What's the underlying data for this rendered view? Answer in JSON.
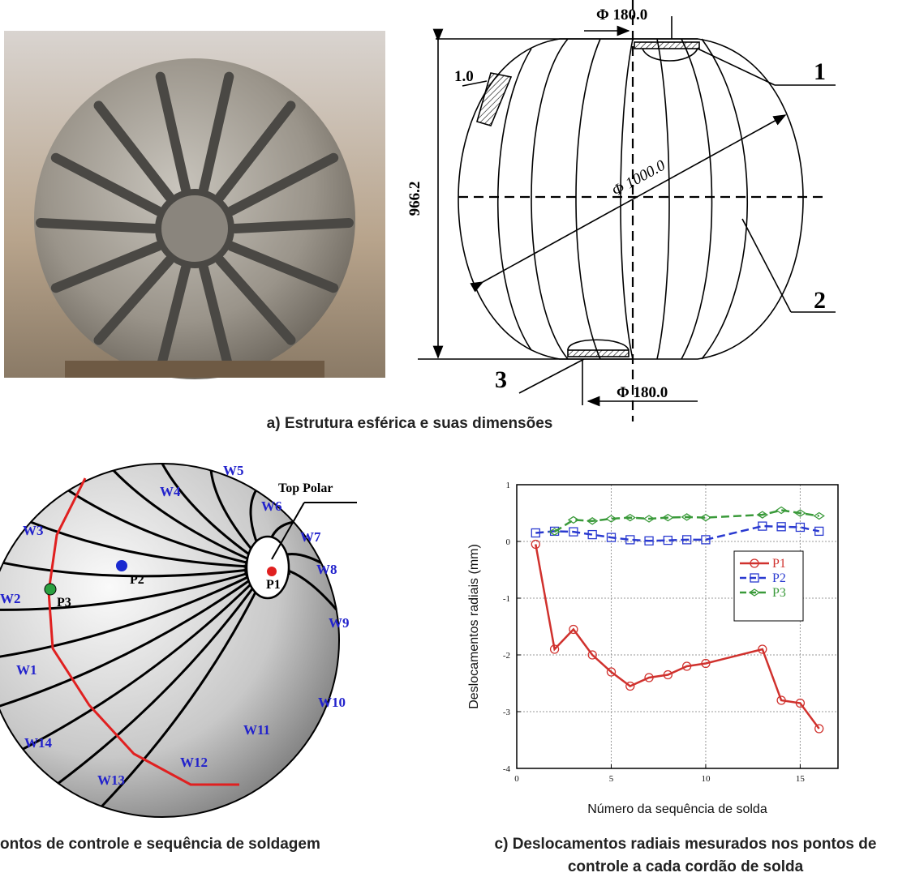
{
  "panel_a": {
    "dim_top": "Φ 180.0",
    "label_1": "1",
    "wall": "1.0",
    "height": "966.2",
    "diameter": "Φ 1000.0",
    "label_2": "2",
    "label_3": "3",
    "dim_bottom": "Φ 180.0",
    "caption": "a) Estrutura esférica e suas dimensões"
  },
  "panel_b": {
    "welds": [
      "W1",
      "W2",
      "W3",
      "W4",
      "W5",
      "W6",
      "W7",
      "W8",
      "W9",
      "W10",
      "W11",
      "W12",
      "W13",
      "W14"
    ],
    "top_polar": "Top Polar",
    "points": [
      "P1",
      "P2",
      "P3"
    ],
    "caption": "ontos de controle e sequência de soldagem"
  },
  "chart_data": {
    "type": "line",
    "x_label": "Número da sequência de solda",
    "y_label": "Deslocamentos radiais (mm)",
    "caption": [
      "c) Deslocamentos radiais mesurados nos pontos de",
      "controle a cada cordão de solda"
    ],
    "xlim": [
      0,
      17
    ],
    "ylim": [
      -4,
      1
    ],
    "xticks": [
      0,
      5,
      10,
      15
    ],
    "yticks": [
      -4,
      -3,
      -2,
      -1,
      0,
      1
    ],
    "grid": true,
    "series": [
      {
        "name": "P1",
        "color": "#d0312d",
        "marker": "circle",
        "dash": "solid",
        "x": [
          1,
          2,
          3,
          4,
          5,
          6,
          7,
          8,
          9,
          10,
          13,
          14,
          15,
          16
        ],
        "values": [
          -0.05,
          -1.9,
          -1.55,
          -2.0,
          -2.3,
          -2.55,
          -2.4,
          -2.35,
          -2.2,
          -2.15,
          -1.9,
          -2.8,
          -2.85,
          -3.3
        ]
      },
      {
        "name": "P2",
        "color": "#2a3ad0",
        "marker": "square",
        "dash": "dash",
        "x": [
          1,
          2,
          3,
          4,
          5,
          6,
          7,
          8,
          9,
          10,
          13,
          14,
          15,
          16
        ],
        "values": [
          0.15,
          0.18,
          0.17,
          0.12,
          0.07,
          0.03,
          0.01,
          0.02,
          0.03,
          0.03,
          0.27,
          0.26,
          0.25,
          0.18
        ]
      },
      {
        "name": "P3",
        "color": "#3a9a3a",
        "marker": "diamond",
        "dash": "dash",
        "x": [
          2,
          3,
          4,
          5,
          6,
          7,
          8,
          9,
          10,
          13,
          14,
          15,
          16
        ],
        "values": [
          0.17,
          0.38,
          0.36,
          0.4,
          0.42,
          0.4,
          0.42,
          0.43,
          0.42,
          0.47,
          0.55,
          0.5,
          0.45
        ]
      }
    ]
  }
}
